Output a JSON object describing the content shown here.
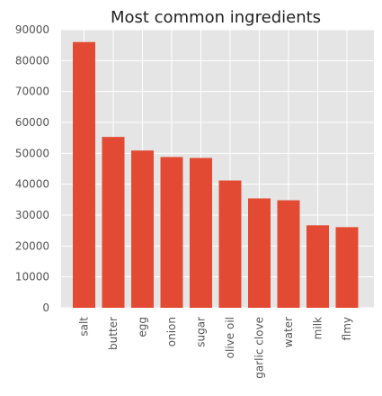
{
  "chart_data": {
    "type": "bar",
    "title": "Most common ingredients",
    "xlabel": "",
    "ylabel": "",
    "categories": [
      "salt",
      "butter",
      "egg",
      "onion",
      "sugar",
      "olive oil",
      "garlic clove",
      "water",
      "milk",
      "flmy"
    ],
    "values": [
      86000,
      55300,
      50900,
      48800,
      48500,
      41200,
      35400,
      34800,
      26700,
      26100
    ],
    "ylim": [
      0,
      90000
    ],
    "yticks": [
      "0",
      "10000",
      "20000",
      "30000",
      "40000",
      "50000",
      "60000",
      "70000",
      "80000",
      "90000"
    ],
    "grid": true,
    "style": "ggplot"
  },
  "colors": {
    "bar": "#E24A33",
    "plot_background": "#E5E5E5",
    "grid": "#FFFFFF",
    "tick_text": "#555555",
    "title_text": "#222222"
  }
}
